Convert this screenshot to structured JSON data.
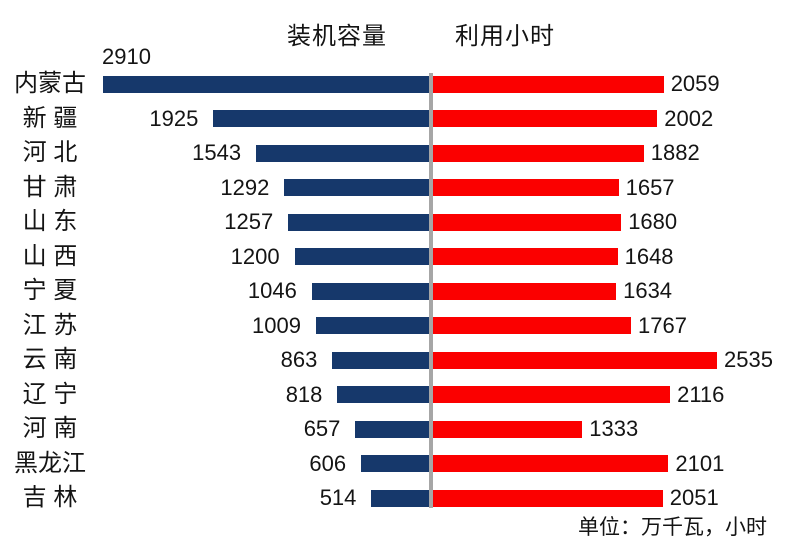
{
  "chart_data": {
    "type": "bar",
    "variant": "diverging-tornado",
    "orientation": "horizontal",
    "title": "",
    "unit_note": "单位：万千瓦，小时",
    "legend_position": "top",
    "divider_color": "#A6A6A6",
    "categories": [
      "内蒙古",
      "新 疆",
      "河 北",
      "甘 肃",
      "山 东",
      "山 西",
      "宁 夏",
      "江 苏",
      "云 南",
      "辽 宁",
      "河 南",
      "黑龙江",
      "吉 林"
    ],
    "series": [
      {
        "name": "装机容量",
        "side": "left",
        "color": "#16386B",
        "values": [
          2910,
          1925,
          1543,
          1292,
          1257,
          1200,
          1046,
          1009,
          863,
          818,
          657,
          606,
          514
        ]
      },
      {
        "name": "利用小时",
        "side": "right",
        "color": "#FB0000",
        "values": [
          2059,
          2002,
          1882,
          1657,
          1680,
          1648,
          1634,
          1767,
          2535,
          2116,
          1333,
          2101,
          2051
        ]
      }
    ],
    "axis": {
      "shared_scale": true,
      "value_min": 0,
      "max_left_value": 2910,
      "max_right_value": 2535,
      "grid": false,
      "data_labels": "outside-end"
    }
  }
}
